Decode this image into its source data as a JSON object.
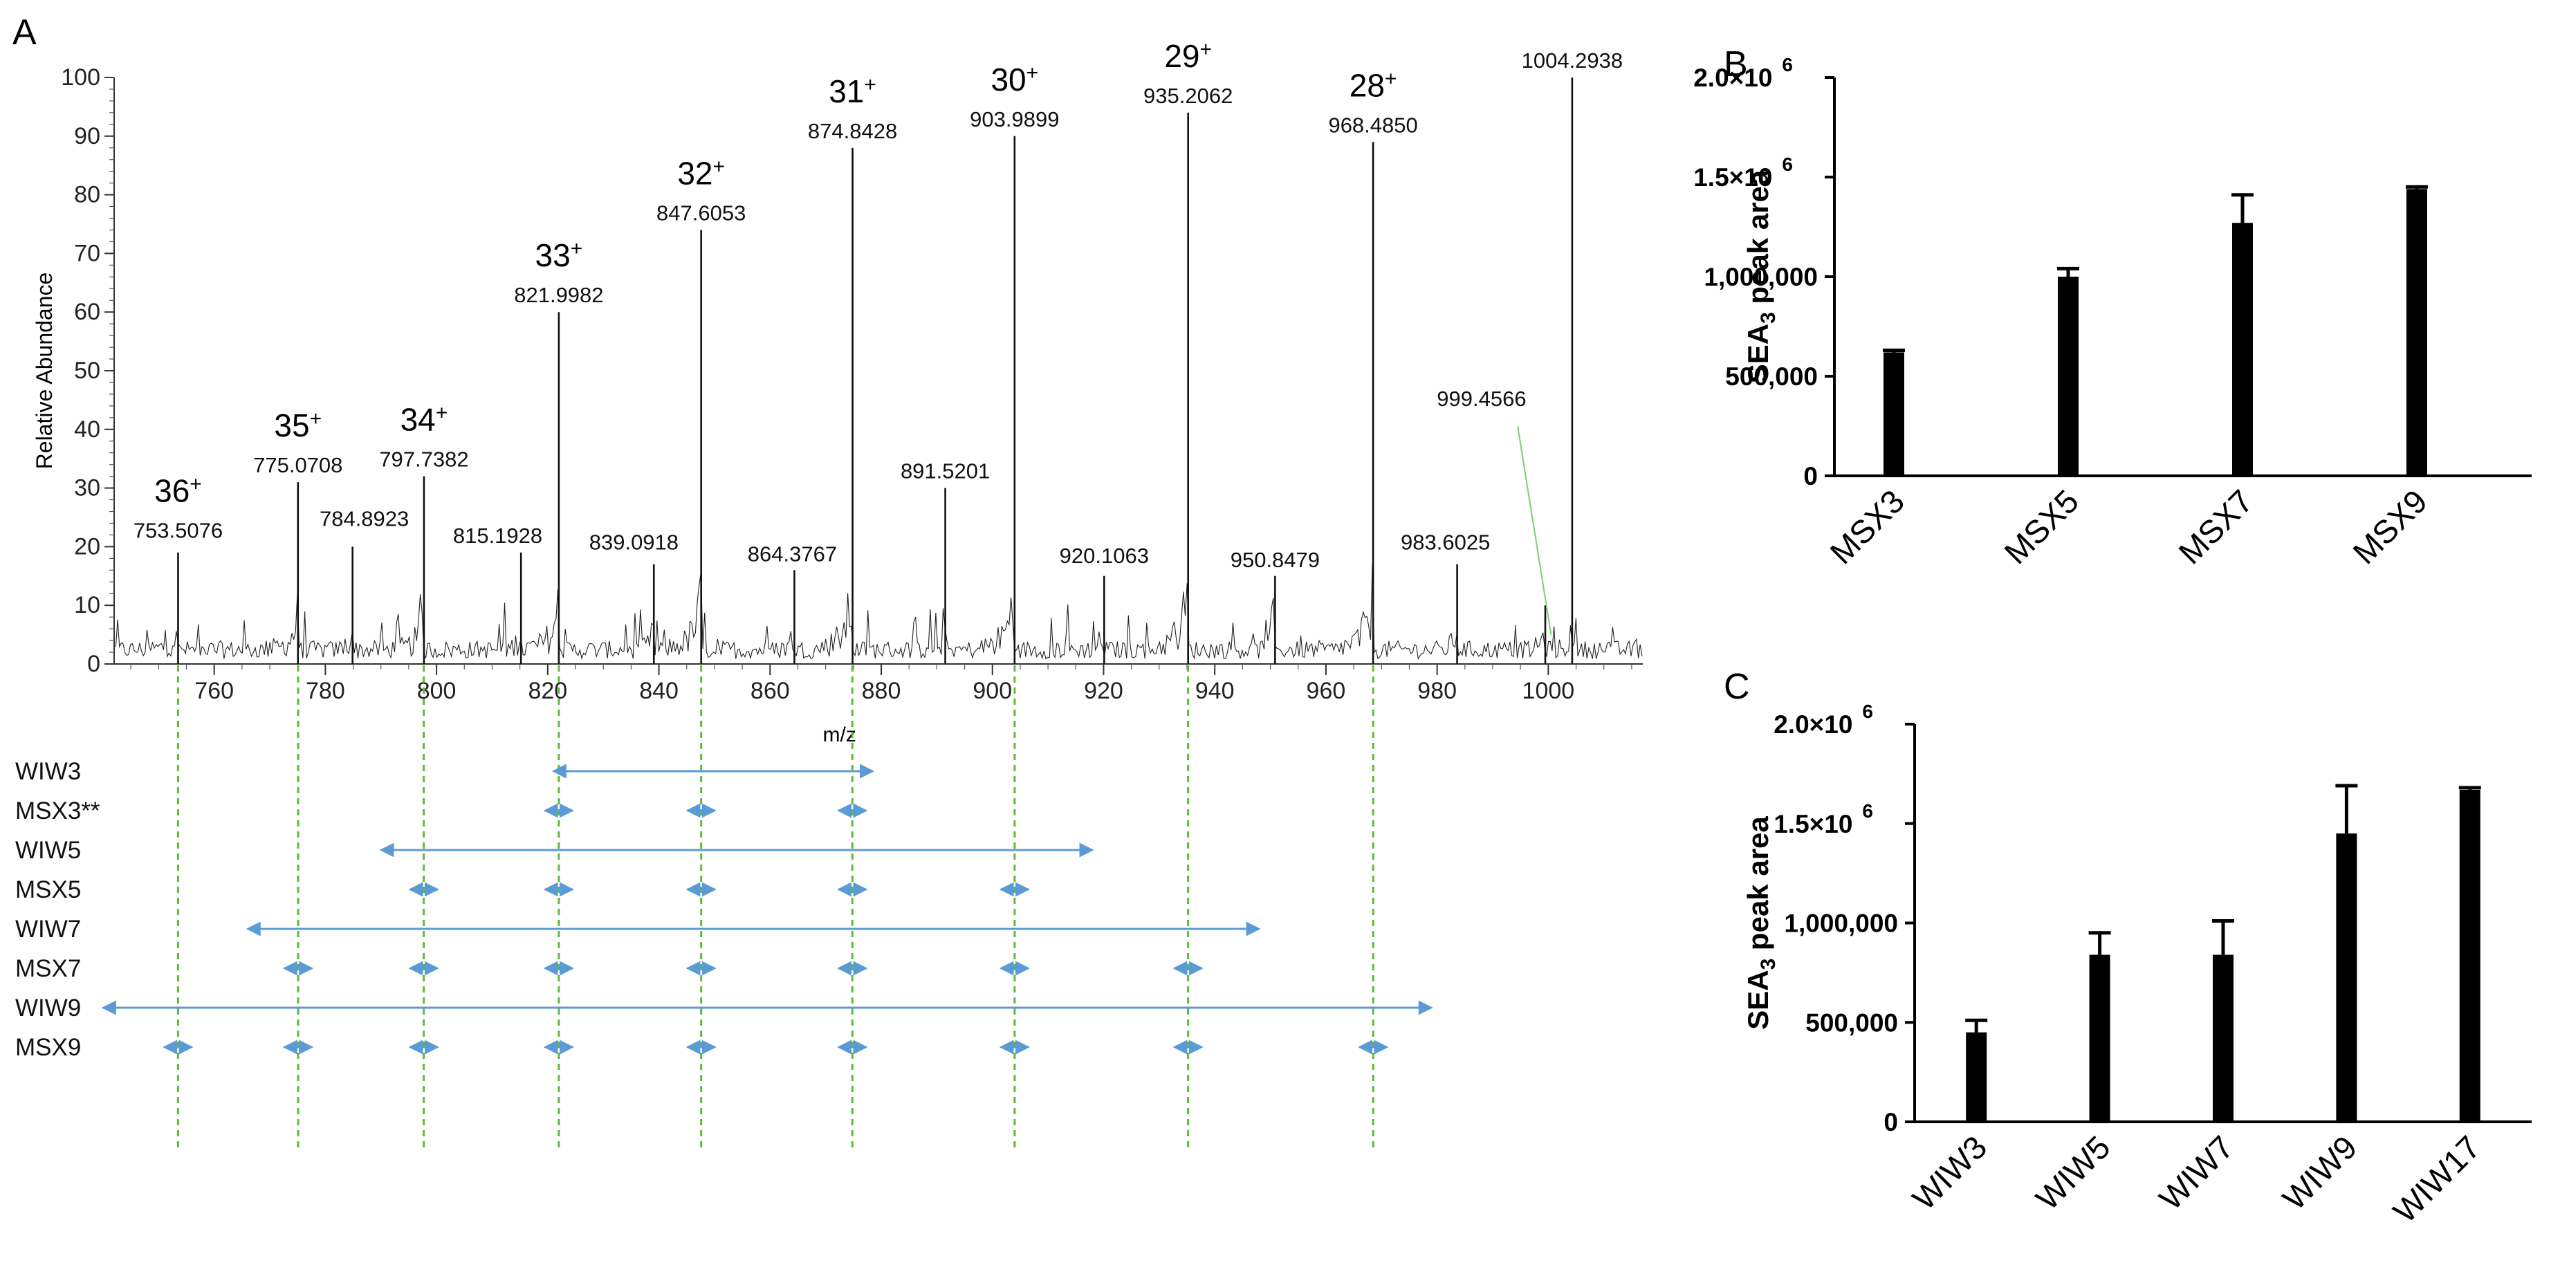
{
  "figure_labels": {
    "a": "A",
    "b": "B",
    "c": "C"
  },
  "chart_data": [
    {
      "id": "A",
      "type": "line",
      "title": "",
      "xlabel": "m/z",
      "ylabel": "Relative Abundance",
      "xlim": [
        742,
        1017
      ],
      "ylim": [
        0,
        100
      ],
      "x_ticks": [
        760,
        780,
        800,
        820,
        840,
        860,
        880,
        900,
        920,
        940,
        960,
        980,
        1000
      ],
      "y_ticks": [
        0,
        10,
        20,
        30,
        40,
        50,
        60,
        70,
        80,
        90,
        100
      ],
      "peaks": [
        {
          "mz": 753.5076,
          "label": "753.5076",
          "intensity": 19,
          "charge": "36"
        },
        {
          "mz": 775.0708,
          "label": "775.0708",
          "intensity": 31,
          "charge": "35"
        },
        {
          "mz": 784.8923,
          "label": "784.8923",
          "intensity": 20
        },
        {
          "mz": 797.7382,
          "label": "797.7382",
          "intensity": 32,
          "charge": "34"
        },
        {
          "mz": 815.1928,
          "label": "815.1928",
          "intensity": 19
        },
        {
          "mz": 821.9982,
          "label": "821.9982",
          "intensity": 60,
          "charge": "33"
        },
        {
          "mz": 839.0918,
          "label": "839.0918",
          "intensity": 17
        },
        {
          "mz": 847.6053,
          "label": "847.6053",
          "intensity": 74,
          "charge": "32"
        },
        {
          "mz": 864.3767,
          "label": "864.3767",
          "intensity": 16
        },
        {
          "mz": 874.8428,
          "label": "874.8428",
          "intensity": 88,
          "charge": "31"
        },
        {
          "mz": 891.5201,
          "label": "891.5201",
          "intensity": 30
        },
        {
          "mz": 903.9899,
          "label": "903.9899",
          "intensity": 90,
          "charge": "30"
        },
        {
          "mz": 920.1063,
          "label": "920.1063",
          "intensity": 15
        },
        {
          "mz": 935.2062,
          "label": "935.2062",
          "intensity": 94,
          "charge": "29"
        },
        {
          "mz": 950.8479,
          "label": "950.8479",
          "intensity": 15
        },
        {
          "mz": 968.485,
          "label": "968.4850",
          "intensity": 89,
          "charge": "28"
        },
        {
          "mz": 983.6025,
          "label": "983.6025",
          "intensity": 17
        },
        {
          "mz": 999.4566,
          "label": "999.4566",
          "intensity": 10
        },
        {
          "mz": 1004.2938,
          "label": "1004.2938",
          "intensity": 100
        }
      ],
      "dashed_guides_mz": [
        753.5,
        775.1,
        797.7,
        822.0,
        847.6,
        874.8,
        904.0,
        935.2,
        968.5
      ],
      "ranges": [
        {
          "label": "WIW3",
          "kind": "window",
          "from": 821.0,
          "to": 878.5
        },
        {
          "label": "MSX3**",
          "kind": "segments",
          "centers": [
            822.0,
            847.6,
            874.8
          ]
        },
        {
          "label": "WIW5",
          "kind": "window",
          "from": 790.0,
          "to": 918.0
        },
        {
          "label": "MSX5",
          "kind": "segments",
          "centers": [
            797.7,
            822.0,
            847.6,
            874.8,
            904.0
          ]
        },
        {
          "label": "WIW7",
          "kind": "window",
          "from": 766.0,
          "to": 948.0
        },
        {
          "label": "MSX7",
          "kind": "segments",
          "centers": [
            775.1,
            797.7,
            822.0,
            847.6,
            874.8,
            904.0,
            935.2
          ]
        },
        {
          "label": "WIW9",
          "kind": "window",
          "from": 740.0,
          "to": 979.0
        },
        {
          "label": "MSX9",
          "kind": "segments",
          "centers": [
            753.5,
            775.1,
            797.7,
            822.0,
            847.6,
            874.8,
            904.0,
            935.2,
            968.5
          ]
        }
      ],
      "colors": {
        "trace": "#111111",
        "guide": "#5dbb3a",
        "arrow": "#5b9bd5",
        "callout": "#7ccf6e"
      }
    },
    {
      "id": "B",
      "type": "bar",
      "categories": [
        "MSX3",
        "MSX5",
        "MSX7",
        "MSX9"
      ],
      "values": [
        620000,
        1000000,
        1270000,
        1440000
      ],
      "errors": [
        0,
        30000,
        130000,
        0
      ],
      "ylabel": "SEA3 peak area",
      "ylabel_main": "SEA",
      "ylabel_sub": "3",
      "ylabel_rest": " peak area",
      "ylim": [
        0,
        2000000
      ],
      "y_ticks": [
        {
          "value": 0,
          "label": "0"
        },
        {
          "value": 500000,
          "label": "500,000"
        },
        {
          "value": 1000000,
          "label": "1,000,000"
        },
        {
          "value": 1500000,
          "label": "1.5×10",
          "exp": "6"
        },
        {
          "value": 2000000,
          "label": "2.0×10",
          "exp": "6"
        }
      ]
    },
    {
      "id": "C",
      "type": "bar",
      "categories": [
        "WIW3",
        "WIW5",
        "WIW7",
        "WIW9",
        "WIW17"
      ],
      "values": [
        450000,
        840000,
        840000,
        1450000,
        1670000
      ],
      "errors": [
        50000,
        100000,
        160000,
        230000,
        0
      ],
      "ylabel": "SEA3 peak area",
      "ylabel_main": "SEA",
      "ylabel_sub": "3",
      "ylabel_rest": " peak area",
      "ylim": [
        0,
        2000000
      ],
      "y_ticks": [
        {
          "value": 0,
          "label": "0"
        },
        {
          "value": 500000,
          "label": "500,000"
        },
        {
          "value": 1000000,
          "label": "1,000,000"
        },
        {
          "value": 1500000,
          "label": "1.5×10",
          "exp": "6"
        },
        {
          "value": 2000000,
          "label": "2.0×10",
          "exp": "6"
        }
      ]
    }
  ]
}
